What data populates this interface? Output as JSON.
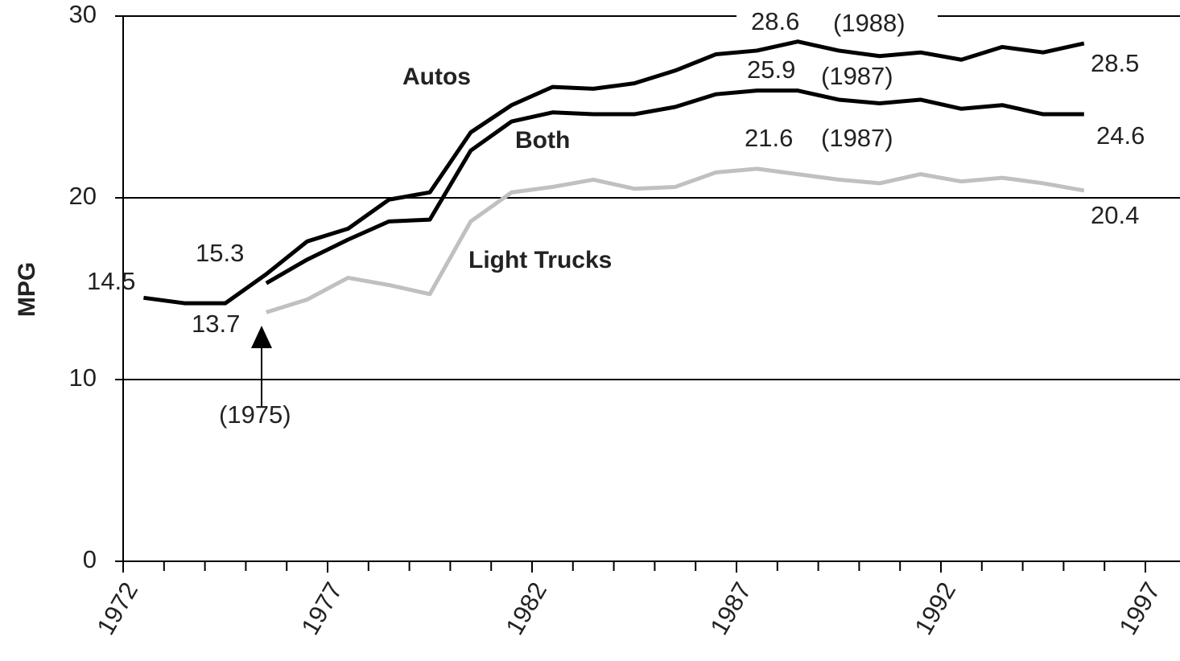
{
  "chart_data": {
    "type": "line",
    "ylabel": "MPG",
    "x": [
      1972.5,
      1973.5,
      1974.5,
      1975.5,
      1976.5,
      1977.5,
      1978.5,
      1979.5,
      1980.5,
      1981.5,
      1982.5,
      1983.5,
      1984.5,
      1985.5,
      1986.5,
      1987.5,
      1988.5,
      1989.5,
      1990.5,
      1991.5,
      1992.5,
      1993.5,
      1994.5,
      1995.5
    ],
    "series": [
      {
        "name": "Autos",
        "color": "#000000",
        "values": [
          14.5,
          14.2,
          14.2,
          15.8,
          17.6,
          18.3,
          19.9,
          20.3,
          23.6,
          25.1,
          26.1,
          26.0,
          26.3,
          27.0,
          27.9,
          28.1,
          28.6,
          28.1,
          27.8,
          28.0,
          27.6,
          28.3,
          28.0,
          28.5
        ]
      },
      {
        "name": "Both",
        "color": "#000000",
        "values": [
          null,
          null,
          null,
          15.3,
          16.6,
          17.7,
          18.7,
          18.8,
          22.6,
          24.2,
          24.7,
          24.6,
          24.6,
          25.0,
          25.7,
          25.9,
          25.9,
          25.4,
          25.2,
          25.4,
          24.9,
          25.1,
          24.6,
          24.6
        ]
      },
      {
        "name": "Light Trucks",
        "color": "#c0c0c0",
        "values": [
          null,
          null,
          null,
          13.7,
          14.4,
          15.6,
          15.2,
          14.7,
          18.7,
          20.3,
          20.6,
          21.0,
          20.5,
          20.6,
          21.4,
          21.6,
          21.3,
          21.0,
          20.8,
          21.3,
          20.9,
          21.1,
          20.8,
          20.4
        ]
      }
    ],
    "annotations": [
      "14.5",
      "13.7",
      "15.3",
      "(1975)",
      "28.6",
      "(1988)",
      "25.9",
      "(1987)",
      "21.6",
      "(1987)",
      "28.5",
      "24.6",
      "20.4"
    ],
    "xlim": [
      1972,
      1997
    ],
    "xticks": [
      1972,
      1977,
      1982,
      1987,
      1992,
      1997
    ],
    "ylim": [
      0,
      30
    ],
    "yticks": [
      0,
      10,
      20,
      30
    ],
    "grid": true
  }
}
